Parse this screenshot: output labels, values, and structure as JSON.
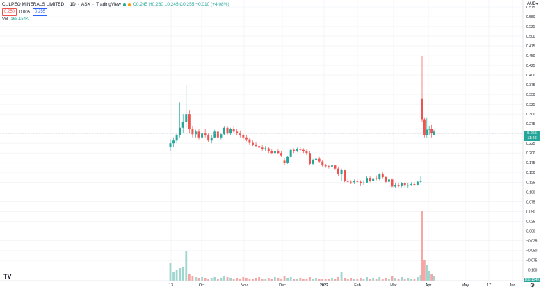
{
  "header": {
    "symbol": "CULPEO MINERALS LIMITED",
    "interval": "1D",
    "exchange": "ASX",
    "source": "TradingView",
    "ohlc": "O0.245 H0.260 L0.245 C0.255 +0.010 (+4.08%)"
  },
  "quote": {
    "bid": "0.250",
    "spread": "0.005",
    "ask": "0.255"
  },
  "volume": {
    "label": "Vol",
    "value": "168.154K"
  },
  "currency": "AUD",
  "last_price_tag": "0.255",
  "countdown_tag": "11:28",
  "volume_tag": "168.154K",
  "colors": {
    "up": "#26a69a",
    "down": "#ef5350",
    "up_vol": "#9fd6cf",
    "down_vol": "#f5a7a5",
    "grid": "#eef0f3",
    "axis_text": "#131722"
  },
  "chart_data": {
    "type": "candlestick",
    "x_ticks": [
      "13",
      "Oct",
      "Nov",
      "Dec",
      "2022",
      "Feb",
      "Mar",
      "Apr",
      "May",
      "17",
      "Jun"
    ],
    "y_ticks": [
      "0.575",
      "0.550",
      "0.525",
      "0.500",
      "0.475",
      "0.450",
      "0.425",
      "0.400",
      "0.375",
      "0.350",
      "0.325",
      "0.300",
      "0.275",
      "0.250",
      "0.225",
      "0.200",
      "0.175",
      "0.150",
      "0.125",
      "0.100",
      "0.075",
      "0.050",
      "0.025",
      "0.000",
      "-0.025",
      "-0.050",
      "-0.075",
      "-0.100"
    ],
    "ylim": [
      -0.11,
      0.575
    ],
    "candles": [
      [
        0.215,
        0.235,
        0.205,
        0.225
      ],
      [
        0.225,
        0.24,
        0.215,
        0.232
      ],
      [
        0.232,
        0.25,
        0.225,
        0.245
      ],
      [
        0.245,
        0.33,
        0.24,
        0.265
      ],
      [
        0.265,
        0.3,
        0.25,
        0.28
      ],
      [
        0.28,
        0.375,
        0.265,
        0.3
      ],
      [
        0.3,
        0.31,
        0.25,
        0.262
      ],
      [
        0.262,
        0.27,
        0.24,
        0.248
      ],
      [
        0.248,
        0.26,
        0.24,
        0.255
      ],
      [
        0.255,
        0.262,
        0.235,
        0.24
      ],
      [
        0.24,
        0.255,
        0.23,
        0.25
      ],
      [
        0.25,
        0.262,
        0.24,
        0.245
      ],
      [
        0.245,
        0.25,
        0.228,
        0.232
      ],
      [
        0.232,
        0.245,
        0.225,
        0.24
      ],
      [
        0.24,
        0.26,
        0.238,
        0.255
      ],
      [
        0.255,
        0.262,
        0.232,
        0.24
      ],
      [
        0.24,
        0.252,
        0.235,
        0.248
      ],
      [
        0.248,
        0.268,
        0.245,
        0.265
      ],
      [
        0.265,
        0.27,
        0.245,
        0.25
      ],
      [
        0.25,
        0.265,
        0.245,
        0.262
      ],
      [
        0.262,
        0.27,
        0.25,
        0.255
      ],
      [
        0.255,
        0.262,
        0.245,
        0.25
      ],
      [
        0.25,
        0.258,
        0.24,
        0.245
      ],
      [
        0.245,
        0.25,
        0.235,
        0.24
      ],
      [
        0.24,
        0.245,
        0.23,
        0.235
      ],
      [
        0.235,
        0.24,
        0.222,
        0.226
      ],
      [
        0.226,
        0.232,
        0.218,
        0.222
      ],
      [
        0.222,
        0.228,
        0.215,
        0.218
      ],
      [
        0.218,
        0.225,
        0.21,
        0.214
      ],
      [
        0.214,
        0.22,
        0.205,
        0.21
      ],
      [
        0.21,
        0.218,
        0.205,
        0.212
      ],
      [
        0.212,
        0.215,
        0.2,
        0.204
      ],
      [
        0.204,
        0.21,
        0.198,
        0.2
      ],
      [
        0.2,
        0.208,
        0.195,
        0.205
      ],
      [
        0.205,
        0.21,
        0.198,
        0.2
      ],
      [
        0.2,
        0.205,
        0.19,
        0.194
      ],
      [
        0.18,
        0.186,
        0.17,
        0.175
      ],
      [
        0.175,
        0.192,
        0.172,
        0.19
      ],
      [
        0.19,
        0.212,
        0.188,
        0.208
      ],
      [
        0.208,
        0.212,
        0.2,
        0.206
      ],
      [
        0.206,
        0.214,
        0.202,
        0.21
      ],
      [
        0.21,
        0.215,
        0.205,
        0.208
      ],
      [
        0.208,
        0.212,
        0.2,
        0.204
      ],
      [
        0.204,
        0.21,
        0.195,
        0.2
      ],
      [
        0.2,
        0.205,
        0.168,
        0.172
      ],
      [
        0.172,
        0.185,
        0.17,
        0.182
      ],
      [
        0.182,
        0.19,
        0.178,
        0.185
      ],
      [
        0.185,
        0.19,
        0.175,
        0.178
      ],
      [
        0.178,
        0.182,
        0.165,
        0.168
      ],
      [
        0.168,
        0.172,
        0.162,
        0.166
      ],
      [
        0.166,
        0.17,
        0.16,
        0.165
      ],
      [
        0.165,
        0.172,
        0.162,
        0.168
      ],
      [
        0.168,
        0.17,
        0.158,
        0.16
      ],
      [
        0.16,
        0.165,
        0.14,
        0.145
      ],
      [
        0.145,
        0.16,
        0.128,
        0.156
      ],
      [
        0.156,
        0.158,
        0.125,
        0.128
      ],
      [
        0.128,
        0.135,
        0.122,
        0.126
      ],
      [
        0.126,
        0.13,
        0.12,
        0.125
      ],
      [
        0.125,
        0.132,
        0.12,
        0.128
      ],
      [
        0.128,
        0.132,
        0.122,
        0.126
      ],
      [
        0.126,
        0.13,
        0.115,
        0.122
      ],
      [
        0.122,
        0.13,
        0.118,
        0.124
      ],
      [
        0.124,
        0.14,
        0.122,
        0.136
      ],
      [
        0.136,
        0.14,
        0.125,
        0.128
      ],
      [
        0.128,
        0.138,
        0.125,
        0.135
      ],
      [
        0.135,
        0.142,
        0.13,
        0.133
      ],
      [
        0.133,
        0.148,
        0.13,
        0.145
      ],
      [
        0.145,
        0.15,
        0.135,
        0.138
      ],
      [
        0.138,
        0.14,
        0.124,
        0.126
      ],
      [
        0.126,
        0.135,
        0.12,
        0.132
      ],
      [
        0.132,
        0.135,
        0.112,
        0.114
      ],
      [
        0.114,
        0.122,
        0.11,
        0.118
      ],
      [
        0.118,
        0.124,
        0.112,
        0.115
      ],
      [
        0.115,
        0.125,
        0.112,
        0.122
      ],
      [
        0.122,
        0.125,
        0.112,
        0.116
      ],
      [
        0.116,
        0.122,
        0.11,
        0.118
      ],
      [
        0.118,
        0.125,
        0.115,
        0.12
      ],
      [
        0.12,
        0.125,
        0.115,
        0.118
      ],
      [
        0.118,
        0.128,
        0.116,
        0.126
      ],
      [
        0.126,
        0.14,
        0.124,
        0.128
      ],
      [
        0.34,
        0.45,
        0.28,
        0.285
      ],
      [
        0.285,
        0.29,
        0.24,
        0.245
      ],
      [
        0.245,
        0.29,
        0.24,
        0.26
      ],
      [
        0.26,
        0.27,
        0.245,
        0.262
      ],
      [
        0.262,
        0.272,
        0.24,
        0.25
      ],
      [
        0.245,
        0.26,
        0.245,
        0.255
      ]
    ],
    "volumes": [
      0.25,
      0.12,
      0.15,
      0.18,
      0.2,
      0.42,
      0.1,
      0.06,
      0.05,
      0.04,
      0.05,
      0.04,
      0.03,
      0.04,
      0.05,
      0.03,
      0.04,
      0.06,
      0.05,
      0.04,
      0.03,
      0.04,
      0.03,
      0.05,
      0.04,
      0.03,
      0.03,
      0.04,
      0.05,
      0.03,
      0.03,
      0.04,
      0.03,
      0.05,
      0.04,
      0.03,
      0.06,
      0.04,
      0.05,
      0.03,
      0.03,
      0.04,
      0.03,
      0.03,
      0.05,
      0.03,
      0.04,
      0.03,
      0.03,
      0.03,
      0.03,
      0.04,
      0.03,
      0.05,
      0.12,
      0.04,
      0.03,
      0.04,
      0.03,
      0.03,
      0.04,
      0.03,
      0.05,
      0.03,
      0.04,
      0.03,
      0.05,
      0.03,
      0.04,
      0.03,
      0.06,
      0.04,
      0.03,
      0.05,
      0.03,
      0.04,
      0.03,
      0.03,
      0.05,
      0.08,
      1.0,
      0.3,
      0.22,
      0.14,
      0.1,
      0.06
    ]
  }
}
